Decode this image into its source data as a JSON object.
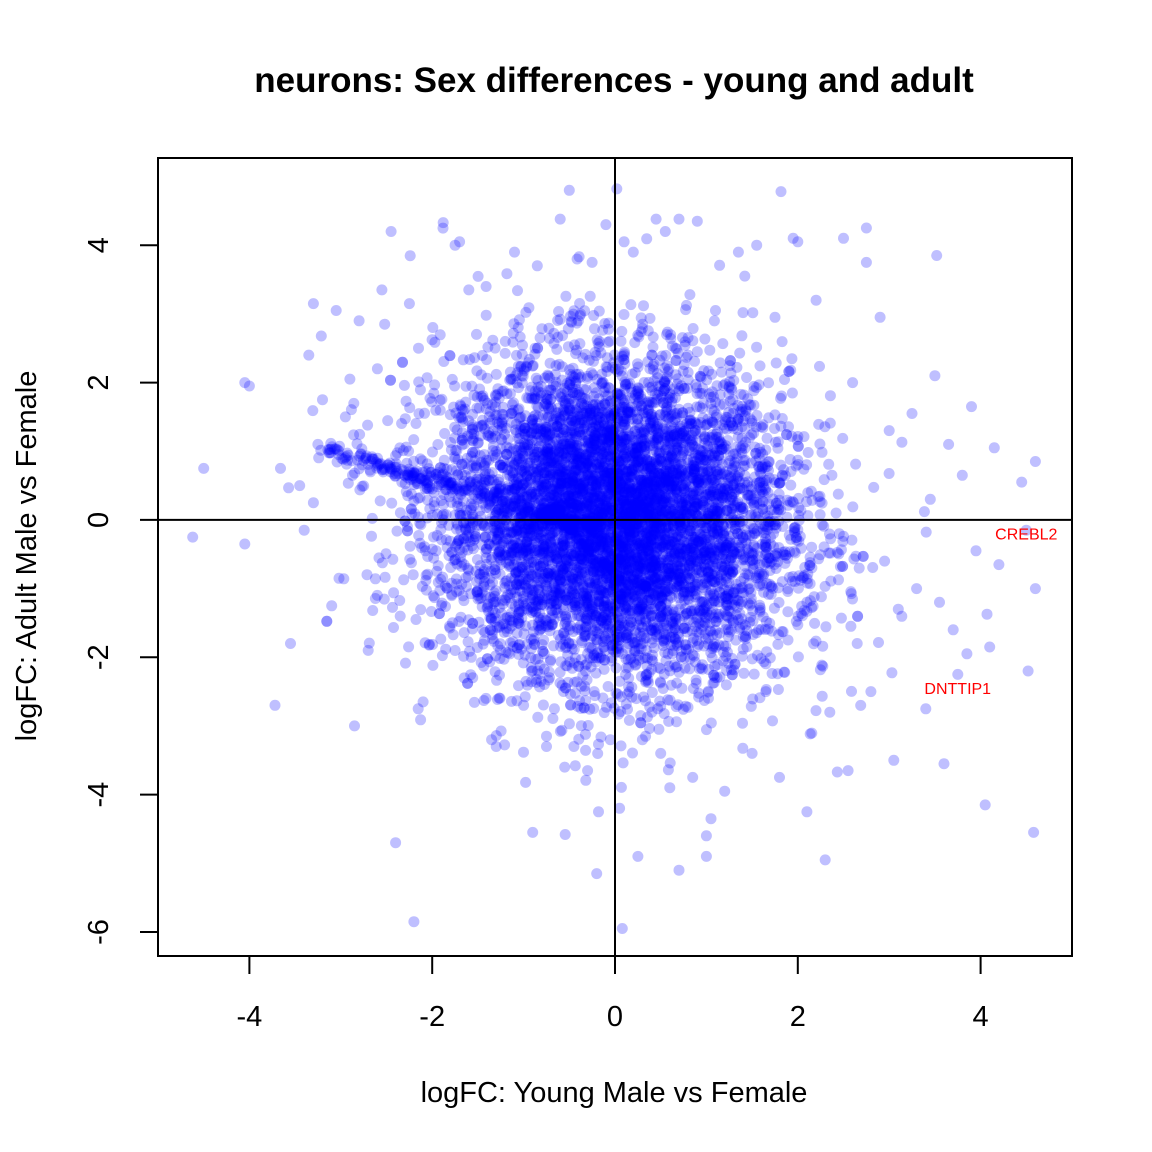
{
  "chart_data": {
    "type": "scatter",
    "title": "neurons: Sex differences - young and adult",
    "xlabel": "logFC: Young Male vs Female",
    "ylabel": "logFC: Adult Male vs Female",
    "xlim": [
      -5.0,
      5.0
    ],
    "ylim": [
      -6.35,
      5.27
    ],
    "xticks": [
      -4,
      -2,
      0,
      2,
      4
    ],
    "yticks": [
      -6,
      -4,
      -2,
      0,
      2,
      4
    ],
    "reference_lines": {
      "x": 0,
      "y": 0
    },
    "grid": false,
    "legend": "none",
    "point_color": "#0000ff",
    "point_alpha": 0.25,
    "label_color": "#ff0000",
    "annotations": [
      {
        "text": "CREBL2",
        "x": 4.5,
        "y": -0.2
      },
      {
        "text": "DNTTIP1",
        "x": 3.75,
        "y": -2.45
      }
    ],
    "points": [
      [
        -4.62,
        -0.25
      ],
      [
        -4.5,
        0.75
      ],
      [
        -4.05,
        2.0
      ],
      [
        -4.0,
        1.95
      ],
      [
        -4.05,
        -0.35
      ],
      [
        -3.72,
        -2.7
      ],
      [
        -3.66,
        0.75
      ],
      [
        -3.55,
        -1.8
      ],
      [
        -3.4,
        -0.15
      ],
      [
        -3.45,
        0.5
      ],
      [
        -3.35,
        2.4
      ],
      [
        -3.3,
        3.15
      ],
      [
        -3.3,
        0.25
      ],
      [
        -3.25,
        1.1
      ],
      [
        -3.2,
        1.75
      ],
      [
        -3.1,
        -1.25
      ],
      [
        -3.05,
        3.05
      ],
      [
        -3.02,
        -0.85
      ],
      [
        -2.95,
        1.5
      ],
      [
        -2.9,
        2.05
      ],
      [
        -2.85,
        -3.0
      ],
      [
        -2.8,
        2.9
      ],
      [
        -2.7,
        -1.9
      ],
      [
        -2.6,
        2.2
      ],
      [
        -2.55,
        3.35
      ],
      [
        -2.52,
        2.85
      ],
      [
        -2.45,
        4.2
      ],
      [
        -2.4,
        -4.7
      ],
      [
        -2.35,
        -1.4
      ],
      [
        -2.25,
        3.15
      ],
      [
        -2.2,
        -5.85
      ],
      [
        -2.15,
        2.5
      ],
      [
        -2.1,
        -2.65
      ],
      [
        -2.0,
        0.45
      ],
      [
        -1.95,
        -0.75
      ],
      [
        -1.88,
        4.33
      ],
      [
        -1.75,
        4.0
      ],
      [
        -1.7,
        4.05
      ],
      [
        -1.65,
        -2.3
      ],
      [
        -1.6,
        3.35
      ],
      [
        -1.5,
        -1.1
      ],
      [
        -1.45,
        1.45
      ],
      [
        -1.35,
        -3.2
      ],
      [
        -1.3,
        -3.3
      ],
      [
        -1.2,
        2.6
      ],
      [
        -1.15,
        -1.95
      ],
      [
        -1.1,
        3.9
      ],
      [
        -1.0,
        -2.7
      ],
      [
        -0.95,
        0.55
      ],
      [
        -0.9,
        -4.55
      ],
      [
        -0.85,
        3.7
      ],
      [
        -0.75,
        -3.3
      ],
      [
        -0.6,
        4.38
      ],
      [
        -0.55,
        -3.6
      ],
      [
        -0.5,
        4.8
      ],
      [
        -0.45,
        -3.3
      ],
      [
        -0.4,
        2.9
      ],
      [
        -0.3,
        -3.65
      ],
      [
        -0.25,
        3.75
      ],
      [
        -0.2,
        -5.15
      ],
      [
        -0.18,
        -4.25
      ],
      [
        -0.1,
        4.3
      ],
      [
        -0.05,
        -3.2
      ],
      [
        0.02,
        4.82
      ],
      [
        0.05,
        -4.2
      ],
      [
        0.08,
        -5.95
      ],
      [
        0.1,
        4.05
      ],
      [
        0.2,
        3.9
      ],
      [
        0.25,
        -4.9
      ],
      [
        0.3,
        -3.2
      ],
      [
        0.45,
        4.38
      ],
      [
        0.5,
        -3.4
      ],
      [
        0.55,
        4.2
      ],
      [
        0.6,
        -3.9
      ],
      [
        0.7,
        4.38
      ],
      [
        0.7,
        -5.1
      ],
      [
        0.85,
        -3.75
      ],
      [
        0.9,
        4.35
      ],
      [
        1.0,
        -4.9
      ],
      [
        1.0,
        -4.6
      ],
      [
        1.05,
        -4.35
      ],
      [
        1.1,
        3.05
      ],
      [
        1.2,
        -3.95
      ],
      [
        1.35,
        3.9
      ],
      [
        1.42,
        3.55
      ],
      [
        1.5,
        -3.4
      ],
      [
        1.55,
        4.0
      ],
      [
        1.65,
        -2.5
      ],
      [
        1.75,
        2.95
      ],
      [
        1.8,
        -3.75
      ],
      [
        1.95,
        4.1
      ],
      [
        2.0,
        4.05
      ],
      [
        2.1,
        -1.2
      ],
      [
        2.1,
        -4.25
      ],
      [
        2.2,
        3.2
      ],
      [
        2.3,
        -4.95
      ],
      [
        2.35,
        -2.8
      ],
      [
        2.5,
        4.1
      ],
      [
        2.55,
        -3.65
      ],
      [
        2.6,
        2.0
      ],
      [
        2.65,
        -1.8
      ],
      [
        2.75,
        3.75
      ],
      [
        2.75,
        4.25
      ],
      [
        2.8,
        -2.5
      ],
      [
        2.9,
        2.95
      ],
      [
        2.95,
        -0.6
      ],
      [
        3.0,
        1.3
      ],
      [
        3.05,
        -3.5
      ],
      [
        3.1,
        -1.3
      ],
      [
        3.25,
        1.55
      ],
      [
        3.3,
        -1.0
      ],
      [
        3.4,
        -2.75
      ],
      [
        3.45,
        0.3
      ],
      [
        3.5,
        2.1
      ],
      [
        3.52,
        3.85
      ],
      [
        3.55,
        -1.2
      ],
      [
        3.6,
        -3.55
      ],
      [
        3.65,
        1.1
      ],
      [
        3.7,
        -1.6
      ],
      [
        3.75,
        -2.25
      ],
      [
        3.8,
        0.65
      ],
      [
        3.85,
        -1.95
      ],
      [
        3.9,
        1.65
      ],
      [
        3.95,
        -0.45
      ],
      [
        4.05,
        -4.15
      ],
      [
        4.1,
        -1.85
      ],
      [
        4.15,
        1.05
      ],
      [
        4.2,
        -0.65
      ],
      [
        4.45,
        0.55
      ],
      [
        4.5,
        -0.15
      ],
      [
        4.52,
        -2.2
      ],
      [
        4.58,
        -4.55
      ],
      [
        4.6,
        -1.0
      ],
      [
        4.6,
        0.85
      ]
    ]
  }
}
